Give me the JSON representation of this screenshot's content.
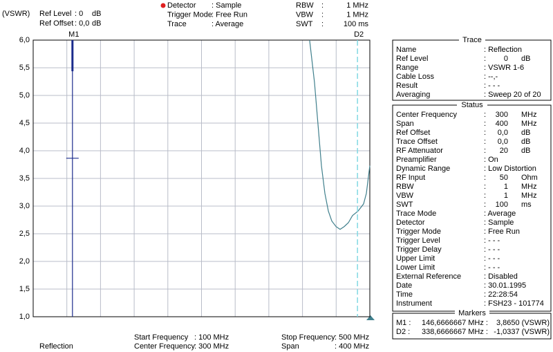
{
  "header": {
    "unit": "(VSWR)",
    "left": [
      {
        "label": "Ref Level",
        "value": ": 0",
        "unit": "dB"
      },
      {
        "label": "Ref Offset",
        "value": ": 0,0",
        "unit": "dB"
      }
    ],
    "middle": [
      {
        "label": "Detector",
        "value": ": Sample"
      },
      {
        "label": "Trigger Mode",
        "value": ": Free Run"
      },
      {
        "label": "Trace",
        "value": ": Average"
      }
    ],
    "right": [
      {
        "label": "RBW",
        "value": ":",
        "unit": "1 MHz"
      },
      {
        "label": "VBW",
        "value": ":",
        "unit": "1 MHz"
      },
      {
        "label": "SWT",
        "value": ":",
        "unit": "100 ms"
      }
    ]
  },
  "plot": {
    "ylim": [
      1,
      6
    ],
    "yticks": [
      {
        "value": 1,
        "label": "1,0"
      },
      {
        "value": 1.5,
        "label": "1,5"
      },
      {
        "value": 2,
        "label": "2,0"
      },
      {
        "value": 2.5,
        "label": "2,5"
      },
      {
        "value": 3,
        "label": "3,0"
      },
      {
        "value": 3.5,
        "label": "3,5"
      },
      {
        "value": 4,
        "label": "4,0"
      },
      {
        "value": 4.5,
        "label": "4,5"
      },
      {
        "value": 5,
        "label": "5,0"
      },
      {
        "value": 5.5,
        "label": "5,5"
      },
      {
        "value": 6,
        "label": "6,0"
      }
    ],
    "xticks": [
      100,
      140,
      180,
      220,
      260,
      300,
      340,
      380,
      420,
      460,
      500
    ],
    "trace": {
      "color": "#3f7f8c",
      "x": [
        428.5,
        434.3,
        438.4,
        442.5,
        446.6,
        450.7,
        454.8,
        459.8,
        464.7,
        469.6,
        474.5,
        479.5,
        486.0,
        492.6,
        495.9,
        500
      ],
      "values": [
        6.0,
        5.23,
        4.48,
        3.73,
        3.23,
        2.91,
        2.73,
        2.63,
        2.58,
        2.63,
        2.7,
        2.83,
        2.91,
        3.04,
        3.23,
        3.73
      ]
    },
    "marker_labels": [
      "M1",
      "D2"
    ]
  },
  "footer": {
    "trace_name": "Reflection",
    "start": {
      "label": "Start Frequency",
      "value": {
        "value": 100,
        "label": ": 100 MHz"
      }
    },
    "center": {
      "label": "Center Frequency",
      "value": ": 300 MHz"
    },
    "stop": {
      "label": "Stop Frequency",
      "value": {
        "value": 500,
        "label": ": 500 MHz"
      }
    },
    "span": {
      "label": "Span",
      "value": ": 400 MHz"
    }
  },
  "panels": [
    {
      "title": "Trace",
      "rows": [
        [
          "Name",
          ": Reflection"
        ],
        [
          "Ref Level",
          ":",
          "0",
          "dB"
        ],
        [
          "Range",
          ": VSWR 1-6"
        ],
        [
          "Cable Loss",
          ": --,-"
        ],
        [
          "Result",
          ": - - -"
        ],
        [
          "Averaging",
          ": Sweep 20 of 20"
        ]
      ]
    },
    {
      "title": "Status",
      "rows": [
        [
          "Center Frequency",
          ":",
          "300",
          "MHz"
        ],
        [
          "Span",
          ":",
          "400",
          "MHz"
        ],
        [
          "Ref Offset",
          ":",
          "0,0",
          "dB"
        ],
        [
          "Trace Offset",
          ":",
          "0,0",
          "dB"
        ],
        [
          "RF Attenuator",
          ":",
          "20",
          "dB"
        ],
        [
          "Preamplifier",
          ": On"
        ],
        [
          "Dynamic Range",
          ": Low Distortion"
        ],
        [
          "RF Input",
          ":",
          "50",
          "Ohm"
        ],
        [
          "RBW",
          ":",
          "1",
          "MHz"
        ],
        [
          "VBW",
          ":",
          "1",
          "MHz"
        ],
        [
          "SWT",
          ":",
          "100",
          "ms"
        ],
        [
          "Trace Mode",
          ": Average"
        ],
        [
          "Detector",
          ": Sample"
        ],
        [
          "Trigger Mode",
          ": Free Run"
        ],
        [
          "Trigger Level",
          ": - - -"
        ],
        [
          "Trigger Delay",
          ": - - -"
        ],
        [
          "Upper Limit",
          ": - - -"
        ],
        [
          "Lower Limit",
          ": - - -"
        ],
        [
          "External Reference",
          ": Disabled"
        ],
        [
          "Date",
          ": 30.01.1995"
        ],
        [
          "Time",
          ": 22:28:54"
        ],
        [
          "Instrument",
          ": FSH23 - 101774"
        ]
      ]
    }
  ],
  "markers": {
    "title": "Markers",
    "rows": [
      {
        "name": "M1 :",
        "freq": {
          "value": 146.6666667,
          "label": "146,6666667 MHz :"
        },
        "level": {
          "value": 3.865,
          "label": "3,8650 (VSWR)"
        }
      },
      {
        "name": "D2 :",
        "freq": {
          "value": 338.6666667,
          "label": "338,6666667 MHz :"
        },
        "level": {
          "value": -1.0337,
          "label": "-1,0337 (VSWR)"
        }
      }
    ]
  }
}
